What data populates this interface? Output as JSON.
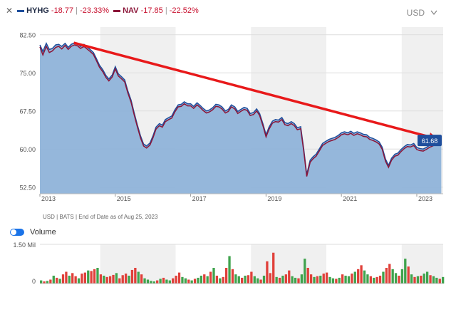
{
  "legend": {
    "close_icon": "close-icon",
    "hyhg_label": "HYHG",
    "hyhg_change": "-18.77",
    "hyhg_pct": "-23.33%",
    "hyhg_color": "#1f4e9c",
    "nav_label": "NAV",
    "nav_change": "-17.85",
    "nav_pct": "-22.52%",
    "nav_color": "#8b1538",
    "separator": "|"
  },
  "currency": {
    "label": "USD",
    "chevron_icon": "chevron-down-icon"
  },
  "footnote": "USD | BATS | End of Date as of Aug 25, 2023",
  "volume_toggle": {
    "label": "Volume",
    "on": true
  },
  "chart_data": [
    {
      "type": "area",
      "yticks": [
        "82.50",
        "75.00",
        "67.50",
        "60.00",
        "52.50"
      ],
      "ytick_values": [
        82.5,
        75,
        67.5,
        60,
        52.5
      ],
      "ylim": [
        51.2,
        84.0
      ],
      "xlim": [
        2013.0,
        2023.7
      ],
      "xticks": [
        "2013",
        "2015",
        "2017",
        "2019",
        "2021",
        "2023"
      ],
      "xtick_values": [
        2013,
        2015,
        2017,
        2019,
        2021,
        2023
      ],
      "last_value_label": "61.68",
      "colors": {
        "area": "#8fb3d9",
        "price": "#1f4e9c",
        "nav": "#8b1538",
        "trend_arrow": "#e8191a",
        "band": "#f0f0f0"
      },
      "series": [
        {
          "name": "HYHG",
          "x": [
            2013.0,
            2013.08,
            2013.17,
            2013.25,
            2013.33,
            2013.42,
            2013.5,
            2013.58,
            2013.67,
            2013.75,
            2013.83,
            2013.92,
            2014.0,
            2014.08,
            2014.17,
            2014.25,
            2014.33,
            2014.42,
            2014.5,
            2014.58,
            2014.67,
            2014.75,
            2014.83,
            2014.92,
            2015.0,
            2015.08,
            2015.17,
            2015.25,
            2015.33,
            2015.42,
            2015.5,
            2015.58,
            2015.67,
            2015.75,
            2015.83,
            2015.92,
            2016.0,
            2016.08,
            2016.17,
            2016.25,
            2016.33,
            2016.42,
            2016.5,
            2016.58,
            2016.67,
            2016.75,
            2016.83,
            2016.92,
            2017.0,
            2017.08,
            2017.17,
            2017.25,
            2017.33,
            2017.42,
            2017.5,
            2017.58,
            2017.67,
            2017.75,
            2017.83,
            2017.92,
            2018.0,
            2018.08,
            2018.17,
            2018.25,
            2018.33,
            2018.42,
            2018.5,
            2018.58,
            2018.67,
            2018.75,
            2018.83,
            2018.92,
            2019.0,
            2019.08,
            2019.17,
            2019.25,
            2019.33,
            2019.42,
            2019.5,
            2019.58,
            2019.67,
            2019.75,
            2019.83,
            2019.92,
            2020.0,
            2020.08,
            2020.17,
            2020.25,
            2020.33,
            2020.42,
            2020.5,
            2020.58,
            2020.67,
            2020.75,
            2020.83,
            2020.92,
            2021.0,
            2021.08,
            2021.17,
            2021.25,
            2021.33,
            2021.42,
            2021.5,
            2021.58,
            2021.67,
            2021.75,
            2021.83,
            2021.92,
            2022.0,
            2022.08,
            2022.17,
            2022.25,
            2022.33,
            2022.42,
            2022.5,
            2022.58,
            2022.67,
            2022.75,
            2022.83,
            2022.92,
            2023.0,
            2023.08,
            2023.17,
            2023.25,
            2023.33,
            2023.42,
            2023.5,
            2023.58,
            2023.65
          ],
          "y": [
            80.5,
            79.2,
            80.8,
            79.6,
            79.8,
            80.5,
            80.6,
            80.2,
            80.8,
            80.0,
            80.6,
            80.9,
            80.7,
            80.2,
            80.6,
            80.1,
            79.6,
            79.0,
            77.8,
            76.5,
            75.6,
            74.5,
            73.8,
            74.6,
            76.2,
            74.8,
            74.2,
            73.6,
            71.5,
            69.6,
            67.2,
            64.9,
            62.6,
            61.0,
            60.6,
            61.2,
            62.6,
            64.3,
            65.0,
            64.7,
            65.8,
            66.2,
            66.5,
            67.7,
            68.7,
            68.8,
            69.3,
            68.9,
            68.9,
            68.4,
            69.1,
            68.6,
            68.0,
            67.5,
            67.7,
            68.1,
            68.8,
            68.7,
            68.3,
            67.5,
            67.8,
            68.7,
            68.3,
            67.4,
            67.8,
            68.2,
            68.0,
            67.0,
            67.2,
            67.9,
            67.0,
            64.9,
            62.8,
            64.3,
            65.5,
            65.8,
            65.7,
            66.2,
            65.2,
            65.0,
            65.4,
            65.0,
            64.2,
            64.4,
            60.0,
            55.0,
            57.8,
            58.5,
            59.0,
            60.1,
            61.1,
            61.5,
            61.9,
            62.1,
            62.3,
            62.7,
            63.2,
            63.4,
            63.2,
            63.5,
            63.1,
            63.4,
            63.2,
            62.9,
            62.8,
            62.3,
            62.1,
            61.8,
            61.4,
            60.4,
            58.0,
            56.8,
            58.2,
            59.0,
            59.2,
            59.9,
            60.5,
            60.9,
            60.8,
            61.1,
            60.3,
            60.1,
            60.0,
            60.3,
            60.7,
            61.0,
            61.3,
            61.6,
            61.7
          ]
        },
        {
          "name": "NAV",
          "x": [
            2013.0,
            2013.08,
            2013.17,
            2013.25,
            2013.33,
            2013.42,
            2013.5,
            2013.58,
            2013.67,
            2013.75,
            2013.83,
            2013.92,
            2014.0,
            2014.08,
            2014.17,
            2014.25,
            2014.33,
            2014.42,
            2014.5,
            2014.58,
            2014.67,
            2014.75,
            2014.83,
            2014.92,
            2015.0,
            2015.08,
            2015.17,
            2015.25,
            2015.33,
            2015.42,
            2015.5,
            2015.58,
            2015.67,
            2015.75,
            2015.83,
            2015.92,
            2016.0,
            2016.08,
            2016.17,
            2016.25,
            2016.33,
            2016.42,
            2016.5,
            2016.58,
            2016.67,
            2016.75,
            2016.83,
            2016.92,
            2017.0,
            2017.08,
            2017.17,
            2017.25,
            2017.33,
            2017.42,
            2017.5,
            2017.58,
            2017.67,
            2017.75,
            2017.83,
            2017.92,
            2018.0,
            2018.08,
            2018.17,
            2018.25,
            2018.33,
            2018.42,
            2018.5,
            2018.58,
            2018.67,
            2018.75,
            2018.83,
            2018.92,
            2019.0,
            2019.08,
            2019.17,
            2019.25,
            2019.33,
            2019.42,
            2019.5,
            2019.58,
            2019.67,
            2019.75,
            2019.83,
            2019.92,
            2020.0,
            2020.08,
            2020.17,
            2020.25,
            2020.33,
            2020.42,
            2020.5,
            2020.58,
            2020.67,
            2020.75,
            2020.83,
            2020.92,
            2021.0,
            2021.08,
            2021.17,
            2021.25,
            2021.33,
            2021.42,
            2021.5,
            2021.58,
            2021.67,
            2021.75,
            2021.83,
            2021.92,
            2022.0,
            2022.08,
            2022.17,
            2022.25,
            2022.33,
            2022.42,
            2022.5,
            2022.58,
            2022.67,
            2022.75,
            2022.83,
            2022.92,
            2023.0,
            2023.08,
            2023.17,
            2023.25,
            2023.33,
            2023.42,
            2023.5,
            2023.58,
            2023.65
          ],
          "y": [
            80.1,
            78.5,
            80.2,
            79.0,
            79.3,
            80.0,
            80.2,
            79.7,
            80.4,
            79.6,
            80.2,
            80.5,
            80.3,
            79.8,
            80.2,
            79.7,
            79.2,
            78.6,
            77.4,
            76.1,
            75.2,
            74.1,
            73.4,
            74.2,
            75.8,
            74.4,
            73.8,
            73.2,
            71.1,
            69.2,
            66.8,
            64.5,
            62.2,
            60.6,
            60.2,
            60.8,
            62.2,
            63.9,
            64.6,
            64.3,
            65.4,
            65.8,
            66.1,
            67.3,
            68.3,
            68.4,
            68.9,
            68.5,
            68.5,
            68.0,
            68.7,
            68.2,
            67.6,
            67.1,
            67.3,
            67.7,
            68.4,
            68.3,
            67.9,
            67.1,
            67.4,
            68.3,
            67.9,
            67.0,
            67.4,
            67.8,
            67.6,
            66.6,
            66.8,
            67.5,
            66.6,
            64.5,
            62.4,
            63.9,
            65.1,
            65.4,
            65.3,
            65.8,
            64.8,
            64.6,
            65.0,
            64.6,
            63.8,
            64.0,
            59.6,
            54.6,
            57.4,
            58.1,
            58.6,
            59.7,
            60.7,
            61.1,
            61.5,
            61.7,
            61.9,
            62.3,
            62.8,
            63.0,
            62.8,
            63.1,
            62.7,
            63.0,
            62.8,
            62.5,
            62.4,
            61.9,
            61.7,
            61.4,
            61.0,
            60.0,
            57.6,
            56.4,
            57.8,
            58.6,
            58.8,
            59.5,
            60.1,
            60.5,
            60.4,
            60.7,
            59.9,
            59.7,
            59.6,
            59.9,
            60.3,
            60.6,
            60.9,
            61.2,
            61.4
          ]
        }
      ],
      "trend_arrow": {
        "from": [
          2013.9,
          80.9
        ],
        "to": [
          2023.55,
          62.0
        ]
      }
    },
    {
      "type": "bar",
      "title": "Volume",
      "yticks": [
        "1.50 Mil",
        "0"
      ],
      "ytick_values": [
        1.5,
        0
      ],
      "unit": "Mil",
      "ylim": [
        0,
        1.5
      ],
      "colors": {
        "up": "#3fa34d",
        "down": "#e0403a"
      },
      "x_start": 2013.0,
      "x_step": 0.0833,
      "values": [
        0.12,
        0.08,
        0.1,
        0.15,
        0.3,
        0.22,
        0.18,
        0.35,
        0.45,
        0.3,
        0.4,
        0.28,
        0.2,
        0.38,
        0.42,
        0.5,
        0.48,
        0.55,
        0.6,
        0.35,
        0.3,
        0.25,
        0.28,
        0.33,
        0.4,
        0.2,
        0.32,
        0.38,
        0.3,
        0.52,
        0.6,
        0.45,
        0.35,
        0.2,
        0.15,
        0.1,
        0.08,
        0.12,
        0.18,
        0.22,
        0.15,
        0.12,
        0.2,
        0.3,
        0.42,
        0.25,
        0.2,
        0.15,
        0.12,
        0.18,
        0.22,
        0.3,
        0.35,
        0.28,
        0.45,
        0.6,
        0.3,
        0.2,
        0.25,
        0.6,
        1.05,
        0.55,
        0.35,
        0.28,
        0.22,
        0.3,
        0.32,
        0.45,
        0.28,
        0.2,
        0.15,
        0.3,
        0.85,
        0.4,
        1.18,
        0.25,
        0.22,
        0.3,
        0.35,
        0.5,
        0.28,
        0.22,
        0.2,
        0.35,
        0.95,
        0.6,
        0.35,
        0.25,
        0.28,
        0.3,
        0.38,
        0.42,
        0.25,
        0.2,
        0.18,
        0.22,
        0.35,
        0.3,
        0.28,
        0.38,
        0.45,
        0.55,
        0.7,
        0.5,
        0.35,
        0.28,
        0.22,
        0.25,
        0.3,
        0.45,
        0.6,
        0.75,
        0.55,
        0.4,
        0.3,
        0.55,
        0.95,
        0.65,
        0.35,
        0.25,
        0.28,
        0.3,
        0.38,
        0.45,
        0.32,
        0.28,
        0.22,
        0.18,
        0.25
      ],
      "up": [
        1,
        0,
        1,
        0,
        1,
        0,
        1,
        0,
        0,
        1,
        0,
        0,
        1,
        0,
        0,
        1,
        0,
        0,
        1,
        0,
        1,
        0,
        0,
        0,
        1,
        0,
        0,
        0,
        1,
        0,
        0,
        1,
        0,
        1,
        1,
        1,
        1,
        0,
        1,
        0,
        1,
        1,
        0,
        0,
        0,
        1,
        1,
        0,
        1,
        0,
        1,
        1,
        0,
        1,
        0,
        1,
        0,
        1,
        0,
        0,
        1,
        0,
        1,
        1,
        0,
        1,
        0,
        0,
        1,
        1,
        0,
        1,
        0,
        0,
        0,
        1,
        0,
        1,
        0,
        0,
        1,
        1,
        0,
        1,
        1,
        0,
        0,
        1,
        0,
        1,
        0,
        0,
        1,
        1,
        0,
        1,
        0,
        1,
        1,
        0,
        1,
        0,
        0,
        1,
        1,
        0,
        1,
        0,
        0,
        1,
        0,
        0,
        1,
        1,
        0,
        1,
        1,
        0,
        1,
        0,
        1,
        0,
        1,
        1,
        0,
        1,
        1,
        0,
        1
      ]
    }
  ]
}
